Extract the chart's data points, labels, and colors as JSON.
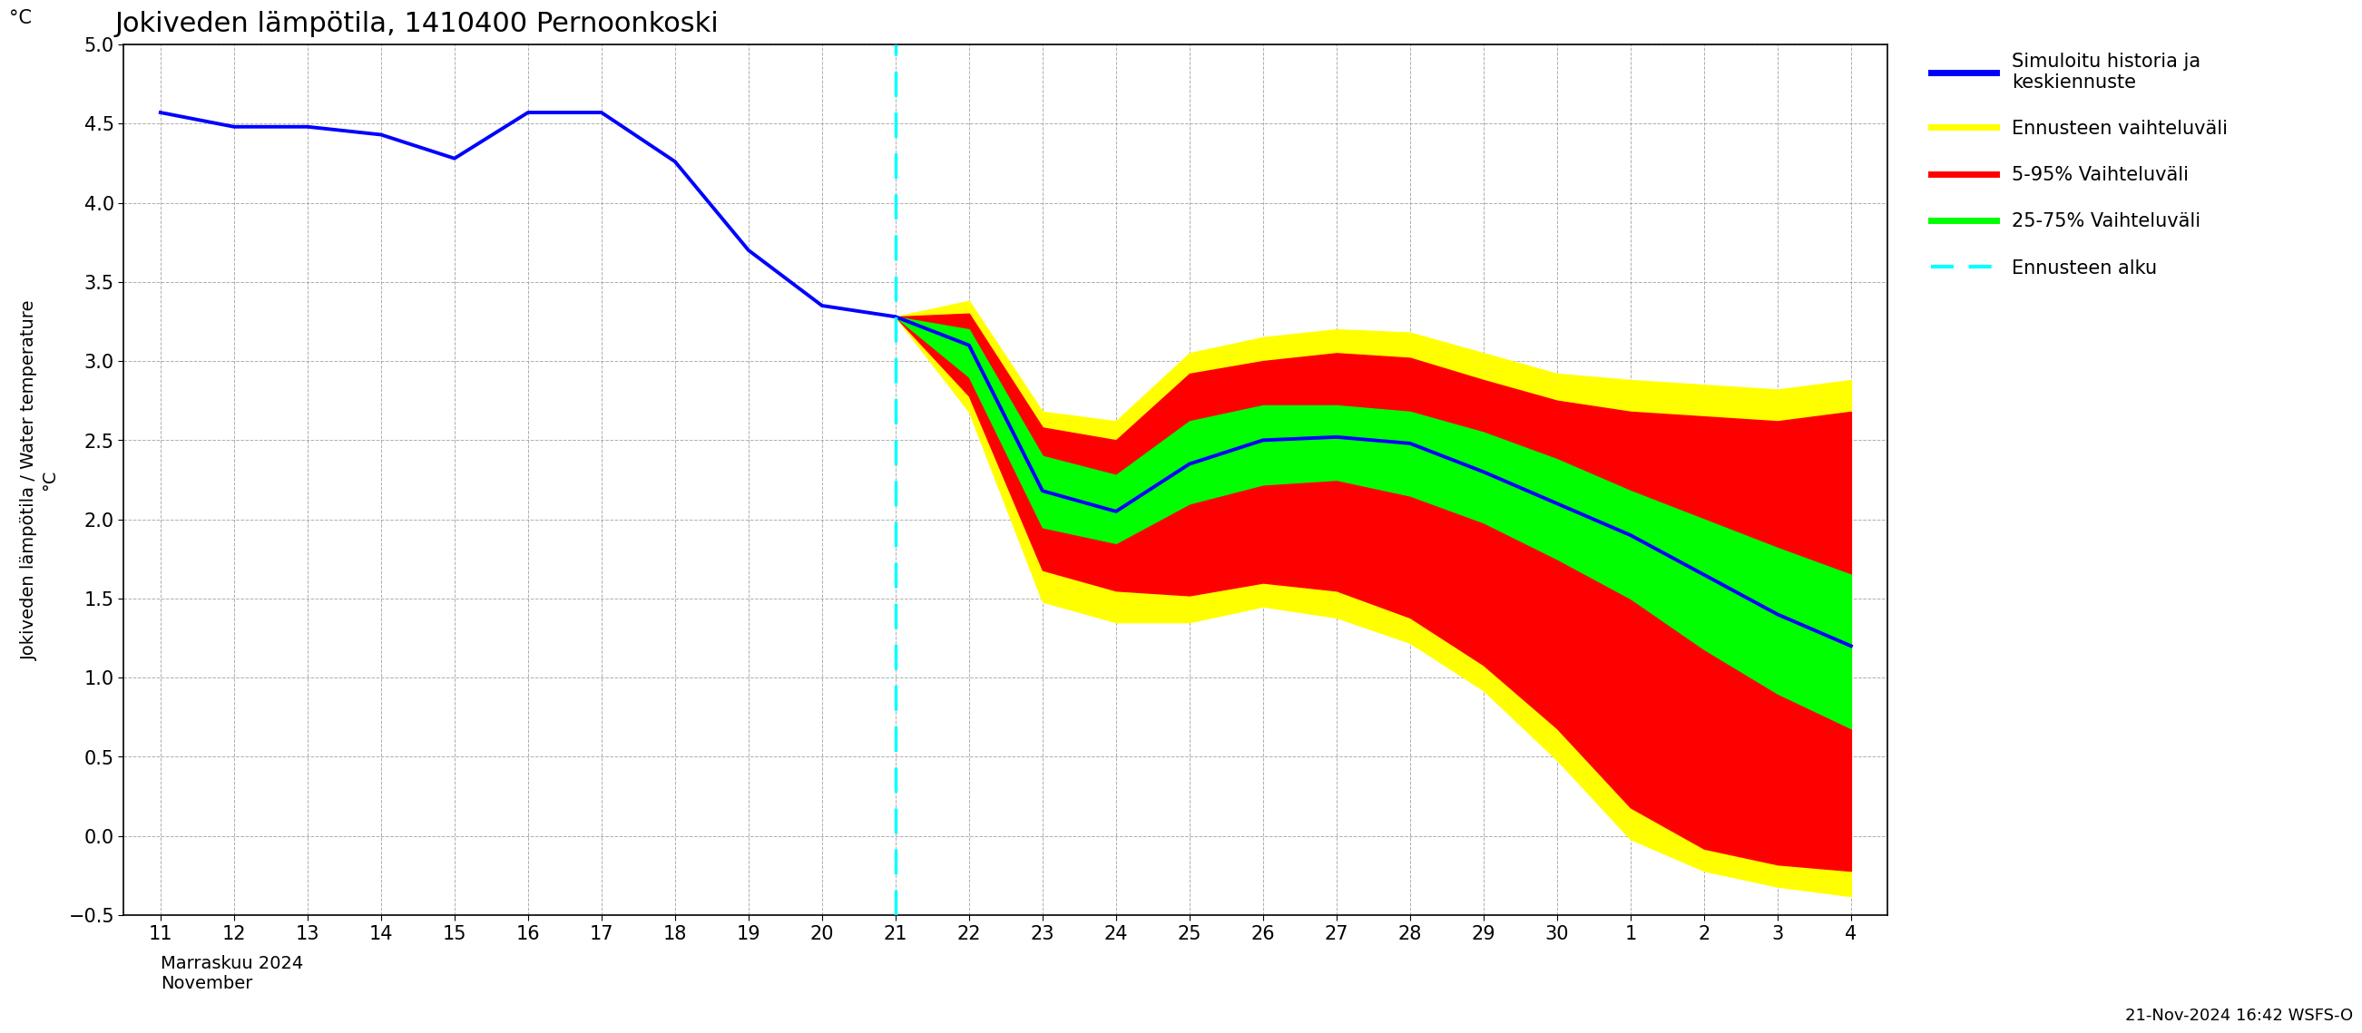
{
  "title": "Jokiveden lämpötila, 1410400 Pernoonkoski",
  "ylabel": "Jokiveden lämpötila / Water temperature",
  "ylabel2": "°C",
  "xlabel_month": "Marraskuu 2024\nNovember",
  "timestamp": "21-Nov-2024 16:42 WSFS-O",
  "ylim": [
    -0.5,
    5.0
  ],
  "yticks": [
    -0.5,
    0.0,
    0.5,
    1.0,
    1.5,
    2.0,
    2.5,
    3.0,
    3.5,
    4.0,
    4.5,
    5.0
  ],
  "vline_x": 21,
  "hist_color": "#0000ff",
  "yellow_color": "#ffff00",
  "red_color": "#ff0000",
  "green_color": "#00ff00",
  "cyan_color": "#00ffff",
  "background_color": "#ffffff",
  "grid_color": "#999999",
  "x_nov": [
    11,
    12,
    13,
    14,
    15,
    16,
    17,
    18,
    19,
    20,
    21
  ],
  "x_fc": [
    21,
    22,
    23,
    24,
    25,
    26,
    27,
    28,
    29,
    30,
    31,
    32,
    33,
    34
  ],
  "hist_y": [
    4.57,
    4.48,
    4.48,
    4.43,
    4.28,
    4.57,
    4.57,
    4.26,
    3.7,
    3.35,
    3.28
  ],
  "median_y": [
    3.28,
    3.1,
    2.18,
    2.05,
    2.35,
    2.5,
    2.52,
    2.48,
    2.3,
    2.1,
    1.9,
    1.65,
    1.4,
    1.2
  ],
  "p25_y": [
    3.28,
    2.9,
    1.95,
    1.85,
    2.1,
    2.22,
    2.25,
    2.15,
    1.98,
    1.75,
    1.5,
    1.18,
    0.9,
    0.68
  ],
  "p75_y": [
    3.28,
    3.2,
    2.4,
    2.28,
    2.62,
    2.72,
    2.72,
    2.68,
    2.55,
    2.38,
    2.18,
    2.0,
    1.82,
    1.65
  ],
  "p05_y": [
    3.28,
    2.78,
    1.68,
    1.55,
    1.52,
    1.6,
    1.55,
    1.38,
    1.08,
    0.68,
    0.18,
    -0.08,
    -0.18,
    -0.22
  ],
  "p95_y": [
    3.28,
    3.3,
    2.58,
    2.5,
    2.92,
    3.0,
    3.05,
    3.02,
    2.88,
    2.75,
    2.68,
    2.65,
    2.62,
    2.68
  ],
  "yellow_low_y": [
    3.28,
    2.68,
    1.48,
    1.35,
    1.35,
    1.45,
    1.38,
    1.22,
    0.92,
    0.48,
    -0.02,
    -0.22,
    -0.32,
    -0.38
  ],
  "yellow_high_y": [
    3.28,
    3.38,
    2.68,
    2.62,
    3.05,
    3.15,
    3.2,
    3.18,
    3.05,
    2.92,
    2.88,
    2.85,
    2.82,
    2.88
  ],
  "legend_items": [
    {
      "label": "Simuloitu historia ja\nkeskiennuste",
      "color": "#0000ff",
      "type": "line"
    },
    {
      "label": "Ennusteen vaihteluväli",
      "color": "#ffff00",
      "type": "line"
    },
    {
      "label": "5-95% Vaihteluväli",
      "color": "#ff0000",
      "type": "line"
    },
    {
      "label": "25-75% Vaihteluväli",
      "color": "#00ff00",
      "type": "line"
    },
    {
      "label": "Ennusteen alku",
      "color": "#00ffff",
      "type": "dashed"
    }
  ]
}
